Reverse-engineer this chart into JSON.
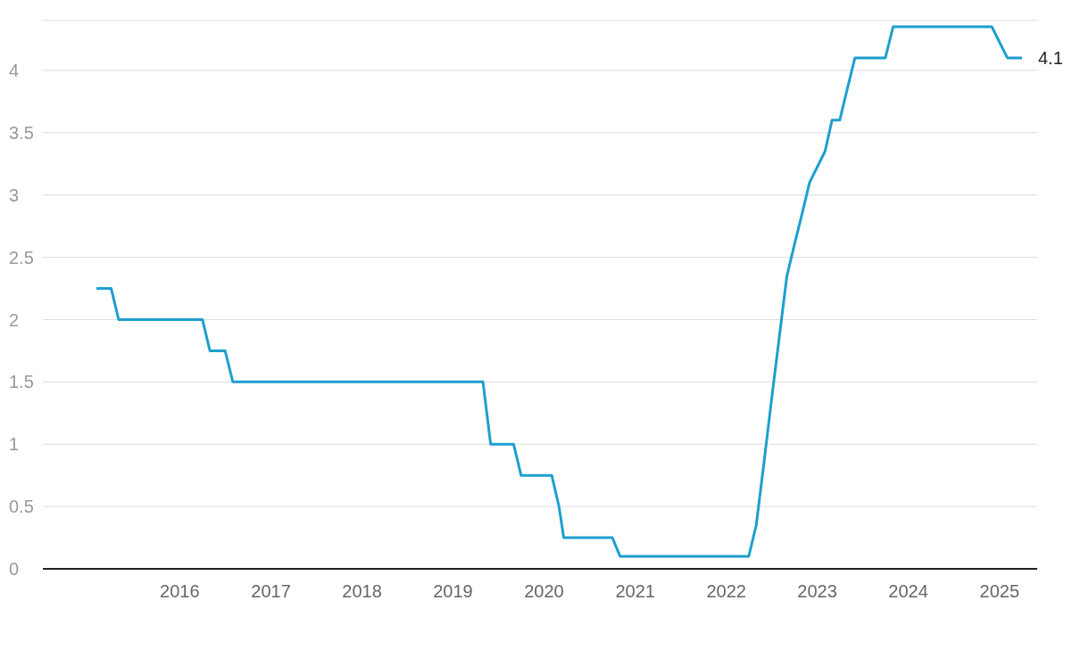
{
  "chart_data": {
    "type": "line",
    "x": [
      "2015-02",
      "2015-04",
      "2015-05",
      "2016-04",
      "2016-05",
      "2016-07",
      "2016-08",
      "2019-05",
      "2019-06",
      "2019-09",
      "2019-10",
      "2020-02",
      "2020-03",
      "2020-03-20",
      "2020-10",
      "2020-11",
      "2022-04",
      "2022-05",
      "2022-06",
      "2022-07",
      "2022-08",
      "2022-09",
      "2022-10",
      "2022-11",
      "2022-12",
      "2023-02",
      "2023-03",
      "2023-04",
      "2023-05",
      "2023-06",
      "2023-10",
      "2023-11",
      "2024-12",
      "2025-02",
      "2025-04"
    ],
    "series": [
      {
        "color": "#1d9fcf",
        "values": [
          2.25,
          2.25,
          2.0,
          2.0,
          1.75,
          1.75,
          1.5,
          1.5,
          1.0,
          1.0,
          0.75,
          0.75,
          0.5,
          0.25,
          0.25,
          0.1,
          0.1,
          0.35,
          0.85,
          1.35,
          1.85,
          2.35,
          2.6,
          2.85,
          3.1,
          3.35,
          3.6,
          3.6,
          3.85,
          4.1,
          4.1,
          4.35,
          4.35,
          4.1,
          4.1
        ],
        "value_labels": [
          null,
          null,
          null,
          null,
          null,
          null,
          null,
          null,
          null,
          null,
          null,
          null,
          null,
          null,
          null,
          null,
          null,
          null,
          null,
          null,
          null,
          null,
          null,
          null,
          null,
          null,
          null,
          null,
          null,
          null,
          null,
          null,
          null,
          null,
          "4.1"
        ]
      }
    ],
    "xlim": [
      "2014-07",
      "2025-06"
    ],
    "xticks": [
      "2016",
      "2017",
      "2018",
      "2019",
      "2020",
      "2021",
      "2022",
      "2023",
      "2024",
      "2025"
    ],
    "ylim": [
      0,
      4.4
    ],
    "yticks": [
      0,
      0.5,
      1,
      1.5,
      2,
      2.5,
      3,
      3.5,
      4
    ],
    "grid": "y",
    "marker": "none",
    "line_style": "solid"
  }
}
